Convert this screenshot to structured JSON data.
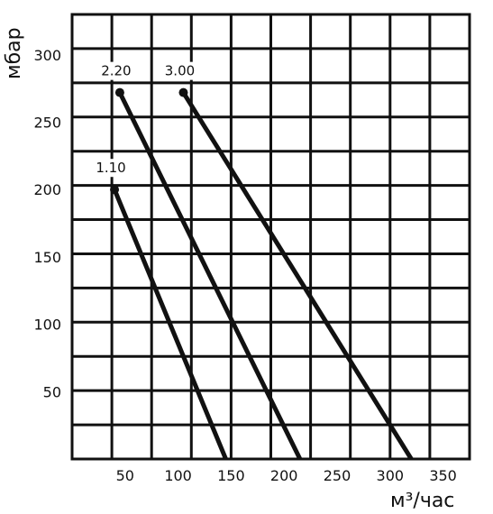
{
  "chart_data": {
    "type": "line",
    "title": "",
    "xlabel": "м³/час",
    "ylabel": "мбар",
    "xlim": [
      0,
      375
    ],
    "ylim": [
      0,
      330
    ],
    "x_ticks": [
      "50",
      "100",
      "150",
      "200",
      "250",
      "300",
      "350"
    ],
    "y_ticks": [
      "50",
      "100",
      "150",
      "200",
      "250",
      "300"
    ],
    "grid": true,
    "series": [
      {
        "name": "1.10",
        "start_marker": true,
        "points": [
          {
            "x": 40,
            "y": 200
          },
          {
            "x": 145,
            "y": 0
          }
        ]
      },
      {
        "name": "2.20",
        "start_marker": true,
        "points": [
          {
            "x": 45,
            "y": 272
          },
          {
            "x": 215,
            "y": 0
          }
        ]
      },
      {
        "name": "3.00",
        "start_marker": true,
        "points": [
          {
            "x": 105,
            "y": 272
          },
          {
            "x": 320,
            "y": 0
          }
        ]
      }
    ],
    "line_color": "#111111",
    "grid_color": "#111111"
  }
}
